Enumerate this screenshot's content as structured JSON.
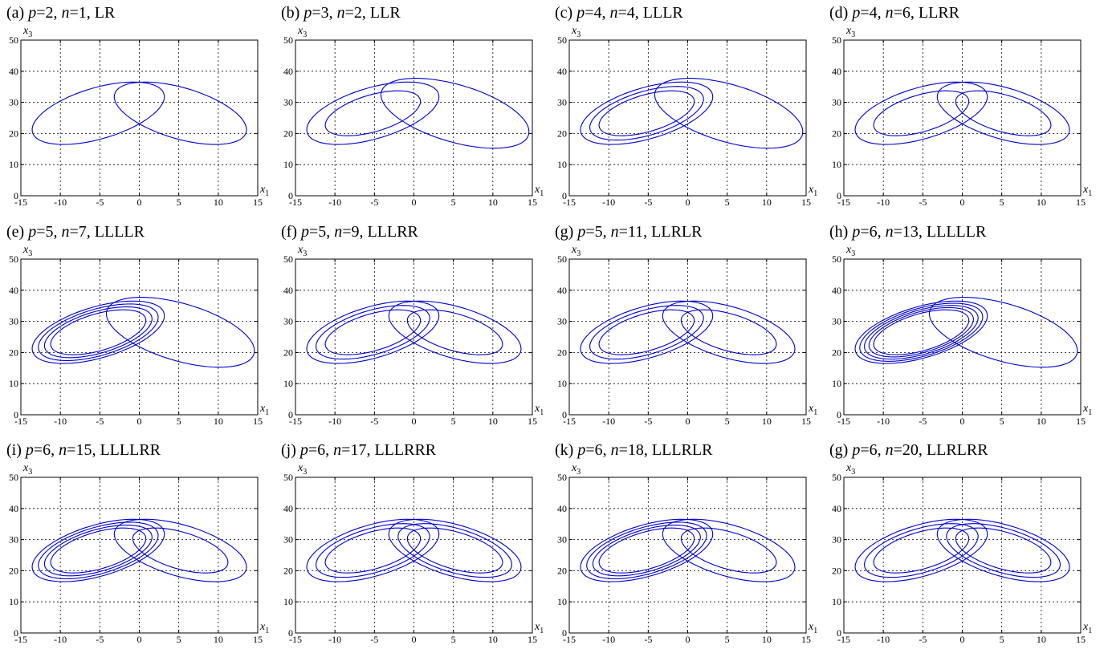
{
  "chart_data": [
    {
      "type": "line",
      "title": "(a) p=2, n=1, LR",
      "title_parts": {
        "tag": "(a)",
        "p": "2",
        "n": "1",
        "symbol": "LR"
      },
      "xlabel": "x1",
      "ylabel": "x3",
      "xlim": [
        -15,
        15
      ],
      "ylim": [
        0,
        50
      ],
      "xticks": [
        -15,
        -10,
        -5,
        0,
        5,
        10,
        15
      ],
      "yticks": [
        0,
        10,
        20,
        30,
        40,
        50
      ],
      "grid": true,
      "color": "#0000cc",
      "sequence": "LR"
    },
    {
      "type": "line",
      "title": "(b) p=3, n=2, LLR",
      "title_parts": {
        "tag": "(b)",
        "p": "3",
        "n": "2",
        "symbol": "LLR"
      },
      "xlabel": "x1",
      "ylabel": "x3",
      "xlim": [
        -15,
        15
      ],
      "ylim": [
        0,
        50
      ],
      "xticks": [
        -15,
        -10,
        -5,
        0,
        5,
        10,
        15
      ],
      "yticks": [
        0,
        10,
        20,
        30,
        40,
        50
      ],
      "grid": true,
      "color": "#0000cc",
      "sequence": "LLR"
    },
    {
      "type": "line",
      "title": "(c) p=4, n=4, LLLR",
      "title_parts": {
        "tag": "(c)",
        "p": "4",
        "n": "4",
        "symbol": "LLLR"
      },
      "xlabel": "x1",
      "ylabel": "x3",
      "xlim": [
        -15,
        15
      ],
      "ylim": [
        0,
        50
      ],
      "xticks": [
        -15,
        -10,
        -5,
        0,
        5,
        10,
        15
      ],
      "yticks": [
        0,
        10,
        20,
        30,
        40,
        50
      ],
      "grid": true,
      "color": "#0000cc",
      "sequence": "LLLR"
    },
    {
      "type": "line",
      "title": "(d) p=4, n=6, LLRR",
      "title_parts": {
        "tag": "(d)",
        "p": "4",
        "n": "6",
        "symbol": "LLRR"
      },
      "xlabel": "x1",
      "ylabel": "x3",
      "xlim": [
        -15,
        15
      ],
      "ylim": [
        0,
        50
      ],
      "xticks": [
        -15,
        -10,
        -5,
        0,
        5,
        10,
        15
      ],
      "yticks": [
        0,
        10,
        20,
        30,
        40,
        50
      ],
      "grid": true,
      "color": "#0000cc",
      "sequence": "LLRR"
    },
    {
      "type": "line",
      "title": "(e) p=5, n=7, LLLLR",
      "title_parts": {
        "tag": "(e)",
        "p": "5",
        "n": "7",
        "symbol": "LLLLR"
      },
      "xlabel": "x1",
      "ylabel": "x3",
      "xlim": [
        -15,
        15
      ],
      "ylim": [
        0,
        50
      ],
      "xticks": [
        -15,
        -10,
        -5,
        0,
        5,
        10,
        15
      ],
      "yticks": [
        0,
        10,
        20,
        30,
        40,
        50
      ],
      "grid": true,
      "color": "#0000cc",
      "sequence": "LLLLR"
    },
    {
      "type": "line",
      "title": "(f) p=5, n=9, LLLRR",
      "title_parts": {
        "tag": "(f)",
        "p": "5",
        "n": "9",
        "symbol": "LLLRR"
      },
      "xlabel": "x1",
      "ylabel": "x3",
      "xlim": [
        -15,
        15
      ],
      "ylim": [
        0,
        50
      ],
      "xticks": [
        -15,
        -10,
        -5,
        0,
        5,
        10,
        15
      ],
      "yticks": [
        0,
        10,
        20,
        30,
        40,
        50
      ],
      "grid": true,
      "color": "#0000cc",
      "sequence": "LLLRR"
    },
    {
      "type": "line",
      "title": "(g) p=5, n=11, LLRLR",
      "title_parts": {
        "tag": "(g)",
        "p": "5",
        "n": "11",
        "symbol": "LLRLR"
      },
      "xlabel": "x1",
      "ylabel": "x3",
      "xlim": [
        -15,
        15
      ],
      "ylim": [
        0,
        50
      ],
      "xticks": [
        -15,
        -10,
        -5,
        0,
        5,
        10,
        15
      ],
      "yticks": [
        0,
        10,
        20,
        30,
        40,
        50
      ],
      "grid": true,
      "color": "#0000cc",
      "sequence": "LLRLR"
    },
    {
      "type": "line",
      "title": "(h) p=6, n=13, LLLLLR",
      "title_parts": {
        "tag": "(h)",
        "p": "6",
        "n": "13",
        "symbol": "LLLLLR"
      },
      "xlabel": "x1",
      "ylabel": "x3",
      "xlim": [
        -15,
        15
      ],
      "ylim": [
        0,
        50
      ],
      "xticks": [
        -15,
        -10,
        -5,
        0,
        5,
        10,
        15
      ],
      "yticks": [
        0,
        10,
        20,
        30,
        40,
        50
      ],
      "grid": true,
      "color": "#0000cc",
      "sequence": "LLLLLR"
    },
    {
      "type": "line",
      "title": "(i) p=6, n=15, LLLLRR",
      "title_parts": {
        "tag": "(i)",
        "p": "6",
        "n": "15",
        "symbol": "LLLLRR"
      },
      "xlabel": "x1",
      "ylabel": "x3",
      "xlim": [
        -15,
        15
      ],
      "ylim": [
        0,
        50
      ],
      "xticks": [
        -15,
        -10,
        -5,
        0,
        5,
        10,
        15
      ],
      "yticks": [
        0,
        10,
        20,
        30,
        40,
        50
      ],
      "grid": true,
      "color": "#0000cc",
      "sequence": "LLLLRR"
    },
    {
      "type": "line",
      "title": "(j) p=6, n=17, LLLRRR",
      "title_parts": {
        "tag": "(j)",
        "p": "6",
        "n": "17",
        "symbol": "LLLRRR"
      },
      "xlabel": "x1",
      "ylabel": "x3",
      "xlim": [
        -15,
        15
      ],
      "ylim": [
        0,
        50
      ],
      "xticks": [
        -15,
        -10,
        -5,
        0,
        5,
        10,
        15
      ],
      "yticks": [
        0,
        10,
        20,
        30,
        40,
        50
      ],
      "grid": true,
      "color": "#0000cc",
      "sequence": "LLLRRR"
    },
    {
      "type": "line",
      "title": "(k) p=6, n=18, LLLRLR",
      "title_parts": {
        "tag": "(k)",
        "p": "6",
        "n": "18",
        "symbol": "LLLRLR"
      },
      "xlabel": "x1",
      "ylabel": "x3",
      "xlim": [
        -15,
        15
      ],
      "ylim": [
        0,
        50
      ],
      "xticks": [
        -15,
        -10,
        -5,
        0,
        5,
        10,
        15
      ],
      "yticks": [
        0,
        10,
        20,
        30,
        40,
        50
      ],
      "grid": true,
      "color": "#0000cc",
      "sequence": "LLLRLR"
    },
    {
      "type": "line",
      "title": "(g) p=6, n=20, LLRLRR",
      "title_parts": {
        "tag": "(g)",
        "p": "6",
        "n": "20",
        "symbol": "LLRLRR"
      },
      "xlabel": "x1",
      "ylabel": "x3",
      "xlim": [
        -15,
        15
      ],
      "ylim": [
        0,
        50
      ],
      "xticks": [
        -15,
        -10,
        -5,
        0,
        5,
        10,
        15
      ],
      "yticks": [
        0,
        10,
        20,
        30,
        40,
        50
      ],
      "grid": true,
      "color": "#0000cc",
      "sequence": "LLRLRR"
    }
  ]
}
